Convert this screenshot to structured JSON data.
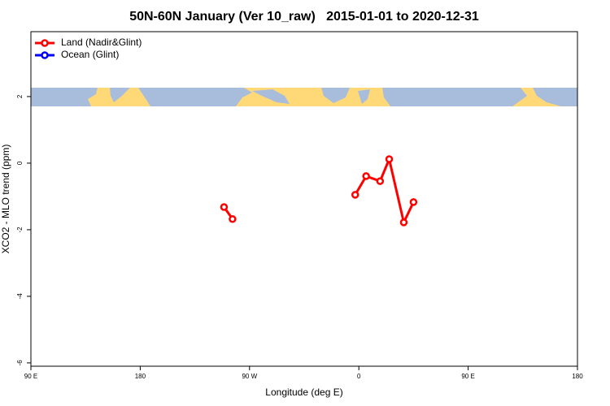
{
  "chart_data": {
    "type": "line",
    "title": "50N-60N January (Ver 10_raw)   2015-01-01 to 2020-12-31",
    "xlabel": "Longitude (deg E)",
    "ylabel": "XCO2 - MLO trend (ppm)",
    "x": [
      249,
      256,
      null,
      357,
      366,
      377.5,
      385,
      397,
      405
    ],
    "series": [
      {
        "name": "Land (Nadir&Glint)",
        "color": "#ff0000",
        "values": [
          -1.32,
          -1.68,
          null,
          -0.95,
          -0.39,
          -0.54,
          0.12,
          -1.78,
          -1.17
        ]
      },
      {
        "name": "Ocean (Glint)",
        "color": "#0000ff",
        "values": [
          null,
          null,
          null,
          null,
          null,
          null,
          null,
          null,
          null
        ]
      }
    ],
    "xlim": [
      90,
      540
    ],
    "xticks": [
      {
        "value": 90,
        "label": "90 E"
      },
      180,
      {
        "value": 270,
        "label": "90 W"
      },
      {
        "value": 360,
        "label": "0"
      },
      {
        "value": 450,
        "label": "90 E"
      },
      {
        "value": 540,
        "label": "180"
      }
    ],
    "ylim": [
      -6.1,
      3.95
    ],
    "yticks": [
      -6,
      -4,
      -2,
      0,
      2
    ],
    "legend": "top-left"
  }
}
